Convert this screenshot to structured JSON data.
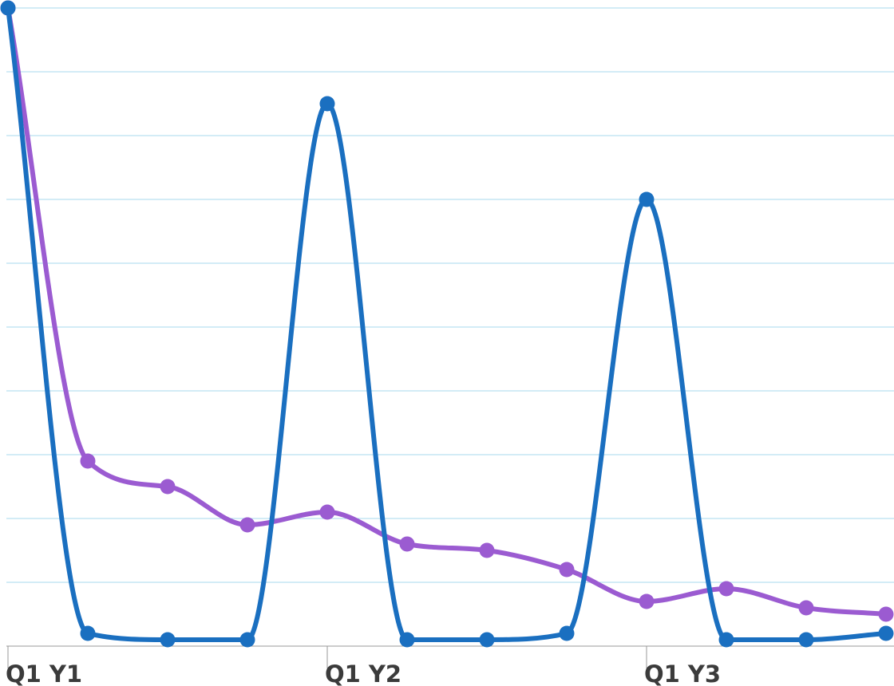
{
  "chart_data": {
    "type": "line",
    "title": "",
    "xlabel": "",
    "ylabel": "",
    "x": [
      0,
      1,
      2,
      3,
      4,
      5,
      6,
      7,
      8,
      9,
      10,
      11
    ],
    "x_tick_labels": [
      {
        "at": 0,
        "label": "Q1 Y1"
      },
      {
        "at": 4,
        "label": "Q1 Y2"
      },
      {
        "at": 8,
        "label": "Q1 Y3"
      }
    ],
    "ylim": [
      0,
      100
    ],
    "y_grid_step": 10,
    "grid": true,
    "smooth": true,
    "series": [
      {
        "color": "#9b5bd1",
        "values": [
          100,
          29,
          25,
          19,
          21,
          16,
          15,
          12,
          7,
          9,
          6,
          5
        ]
      },
      {
        "color": "#1a6fc0",
        "values": [
          100,
          2,
          1,
          1,
          85,
          1,
          1,
          2,
          70,
          1,
          1,
          2
        ]
      }
    ]
  }
}
